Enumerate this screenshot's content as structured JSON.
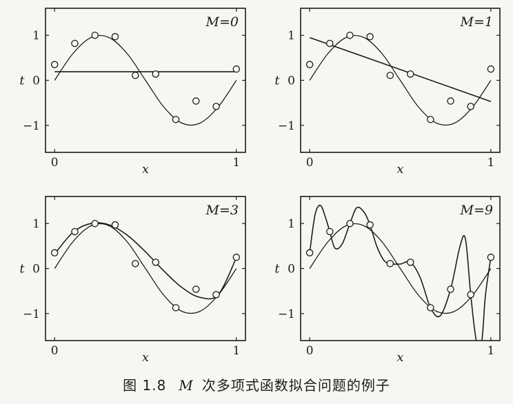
{
  "caption": {
    "label": "图 1.8",
    "variable": "M",
    "text": "次多项式函数拟合问题的例子"
  },
  "colors": {
    "background": "#f7f6f3",
    "ink": "#1b1b1b"
  },
  "chart_data": [
    {
      "type": "line",
      "annotation": "M=0",
      "xlabel": "x",
      "ylabel": "t",
      "xlim": [
        -0.05,
        1.05
      ],
      "ylim": [
        -1.6,
        1.6
      ],
      "xticks": [
        "0",
        "1"
      ],
      "yticks": [
        "-1",
        "0",
        "1"
      ],
      "points": {
        "x": [
          0,
          0.111,
          0.222,
          0.333,
          0.444,
          0.556,
          0.667,
          0.778,
          0.889,
          1
        ],
        "y": [
          0.35,
          0.82,
          1.0,
          0.97,
          0.11,
          0.14,
          -0.87,
          -0.46,
          -0.58,
          0.25
        ]
      },
      "series": [
        {
          "x": [
            0,
            0.1,
            0.2,
            0.3,
            0.4,
            0.5,
            0.6,
            0.7,
            0.8,
            0.9,
            1
          ],
          "y": [
            0,
            0.59,
            0.95,
            0.95,
            0.59,
            0,
            -0.59,
            -0.95,
            -0.95,
            -0.59,
            0
          ]
        },
        {
          "x": [
            0,
            1
          ],
          "y": [
            0.19,
            0.19
          ]
        }
      ]
    },
    {
      "type": "line",
      "annotation": "M=1",
      "xlabel": "x",
      "ylabel": "t",
      "xlim": [
        -0.05,
        1.05
      ],
      "ylim": [
        -1.6,
        1.6
      ],
      "xticks": [
        "0",
        "1"
      ],
      "yticks": [
        "-1",
        "0",
        "1"
      ],
      "points": {
        "x": [
          0,
          0.111,
          0.222,
          0.333,
          0.444,
          0.556,
          0.667,
          0.778,
          0.889,
          1
        ],
        "y": [
          0.35,
          0.82,
          1.0,
          0.97,
          0.11,
          0.14,
          -0.87,
          -0.46,
          -0.58,
          0.25
        ]
      },
      "series": [
        {
          "x": [
            0,
            0.1,
            0.2,
            0.3,
            0.4,
            0.5,
            0.6,
            0.7,
            0.8,
            0.9,
            1
          ],
          "y": [
            0,
            0.59,
            0.95,
            0.95,
            0.59,
            0,
            -0.59,
            -0.95,
            -0.95,
            -0.59,
            0
          ]
        },
        {
          "x": [
            0,
            1
          ],
          "y": [
            0.95,
            -0.47
          ]
        }
      ]
    },
    {
      "type": "line",
      "annotation": "M=3",
      "xlabel": "x",
      "ylabel": "t",
      "xlim": [
        -0.05,
        1.05
      ],
      "ylim": [
        -1.6,
        1.6
      ],
      "xticks": [
        "0",
        "1"
      ],
      "yticks": [
        "-1",
        "0",
        "1"
      ],
      "points": {
        "x": [
          0,
          0.111,
          0.222,
          0.333,
          0.444,
          0.556,
          0.667,
          0.778,
          0.889,
          1
        ],
        "y": [
          0.35,
          0.82,
          1.0,
          0.97,
          0.11,
          0.14,
          -0.87,
          -0.46,
          -0.58,
          0.25
        ]
      },
      "series": [
        {
          "x": [
            0,
            0.1,
            0.2,
            0.3,
            0.4,
            0.5,
            0.6,
            0.7,
            0.8,
            0.9,
            1
          ],
          "y": [
            0,
            0.59,
            0.95,
            0.95,
            0.59,
            0,
            -0.59,
            -0.95,
            -0.95,
            -0.59,
            0
          ]
        },
        {
          "x": [
            0,
            0.1,
            0.2,
            0.3,
            0.4,
            0.5,
            0.6,
            0.7,
            0.8,
            0.9,
            1
          ],
          "y": [
            0.32,
            0.8,
            1.0,
            0.97,
            0.74,
            0.37,
            -0.05,
            -0.42,
            -0.64,
            -0.58,
            0.24
          ]
        }
      ]
    },
    {
      "type": "line",
      "annotation": "M=9",
      "xlabel": "x",
      "ylabel": "t",
      "xlim": [
        -0.05,
        1.05
      ],
      "ylim": [
        -1.6,
        1.6
      ],
      "xticks": [
        "0",
        "1"
      ],
      "yticks": [
        "-1",
        "0",
        "1"
      ],
      "points": {
        "x": [
          0,
          0.111,
          0.222,
          0.333,
          0.444,
          0.556,
          0.667,
          0.778,
          0.889,
          1
        ],
        "y": [
          0.35,
          0.82,
          1.0,
          0.97,
          0.11,
          0.14,
          -0.87,
          -0.46,
          -0.58,
          0.25
        ]
      },
      "series": [
        {
          "x": [
            0,
            0.1,
            0.2,
            0.3,
            0.4,
            0.5,
            0.6,
            0.7,
            0.8,
            0.9,
            1
          ],
          "y": [
            0,
            0.59,
            0.95,
            0.95,
            0.59,
            0,
            -0.59,
            -0.95,
            -0.95,
            -0.59,
            0
          ]
        },
        {
          "x": [
            0,
            0.03,
            0.06,
            0.09,
            0.111,
            0.14,
            0.18,
            0.222,
            0.26,
            0.3,
            0.333,
            0.37,
            0.41,
            0.444,
            0.5,
            0.556,
            0.61,
            0.667,
            0.72,
            0.778,
            0.83,
            0.86,
            0.889,
            0.92,
            0.95,
            0.97,
            1
          ],
          "y": [
            0.35,
            1.2,
            1.4,
            1.1,
            0.82,
            0.45,
            0.55,
            1.0,
            1.35,
            1.25,
            0.97,
            0.5,
            0.18,
            0.11,
            0.1,
            0.14,
            -0.2,
            -0.87,
            -1.05,
            -0.46,
            0.5,
            0.65,
            -0.58,
            -1.6,
            -1.6,
            -0.6,
            0.25
          ]
        }
      ]
    }
  ]
}
